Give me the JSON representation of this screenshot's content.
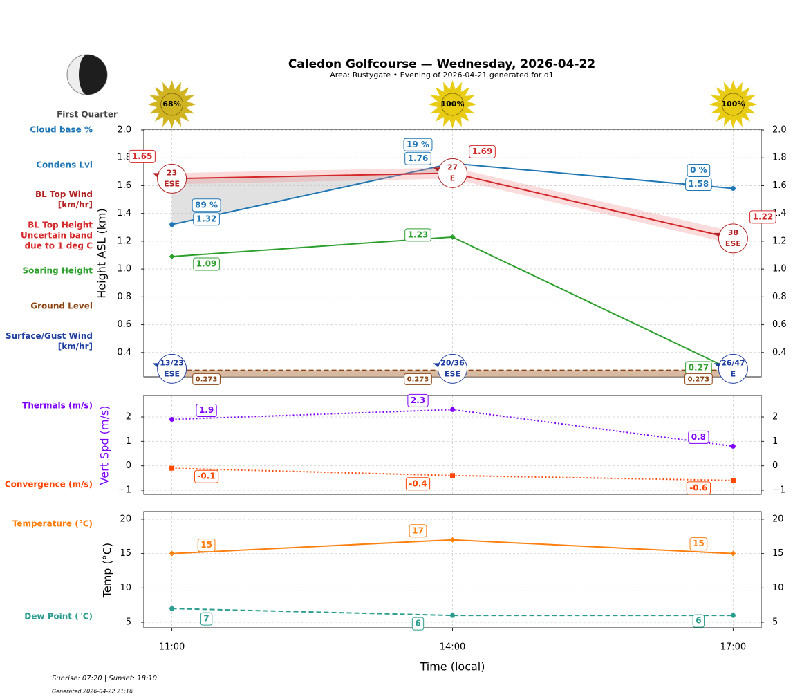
{
  "title": "Caledon Golfcourse — Wednesday, 2026-04-22",
  "subtitle": "Area: Rustygate • Evening of 2026-04-21 generated for d1",
  "moon_phase": "First Quarter",
  "sun": {
    "values": [
      68,
      100,
      100
    ],
    "value_labels": [
      "68%",
      "100%",
      "100%"
    ]
  },
  "footer": {
    "sun_times": "Sunrise: 07:20 | Sunset: 18:10",
    "generated": "Generated 2026-04-22 21:16"
  },
  "chart_data": [
    {
      "type": "line",
      "ylabel": "Height ASL (km)",
      "x": [
        11,
        14,
        17
      ],
      "xlim": [
        10.7,
        17.3
      ],
      "ylim": [
        0.225,
        2.0
      ],
      "yticks": [
        0.4,
        0.6,
        0.8,
        {
          "value": 1,
          "label": "1.0"
        },
        1.2,
        1.4,
        1.6,
        1.8,
        {
          "value": 2,
          "label": "2.0"
        }
      ],
      "grid": true,
      "series": [
        {
          "name": "Cloud base %",
          "color": "#1f77b4",
          "style": "labels",
          "values": [
            89,
            19,
            0
          ],
          "value_labels": [
            "89 %",
            "19 %",
            "0 %"
          ]
        },
        {
          "name": "Condens Lvl",
          "color": "#1f77b4",
          "style": "line",
          "dash": "solid",
          "marker": "circle",
          "values": [
            1.32,
            1.76,
            1.58
          ]
        },
        {
          "name": "BL Top Wind\n[km/hr]",
          "color": "#b22222",
          "style": "wind",
          "values": [
            23,
            27,
            38
          ],
          "directions": [
            "ESE",
            "E",
            "ESE"
          ]
        },
        {
          "name": "BL Top Height\nUncertain band\ndue to 1 deg C",
          "color": "#d62728",
          "style": "line",
          "dash": "solid",
          "marker": "circle",
          "values": [
            1.65,
            1.69,
            1.22
          ],
          "band_lower": [
            1.61,
            1.65,
            1.18
          ],
          "band_upper": [
            1.69,
            1.73,
            1.27
          ]
        },
        {
          "name": "Soaring Height",
          "color": "#2ca02c",
          "style": "line",
          "dash": "solid",
          "marker": "diamond",
          "values": [
            1.09,
            1.23,
            0.27
          ]
        },
        {
          "name": "Ground Level",
          "color": "#8b4513",
          "style": "area",
          "values": [
            0.273,
            0.273,
            0.273
          ]
        },
        {
          "name": "Surface/Gust Wind\n[km/hr]",
          "color": "#1f3fa0",
          "style": "wind",
          "values": [
            13,
            20,
            26
          ],
          "gust": [
            23,
            36,
            47
          ],
          "value_labels": [
            "13/23",
            "20/36",
            "26/47"
          ],
          "directions": [
            "ESE",
            "ESE",
            "E"
          ]
        }
      ]
    },
    {
      "type": "line",
      "ylabel": "Vert Spd (m/s)",
      "x": [
        11,
        14,
        17
      ],
      "xlim": [
        10.7,
        17.3
      ],
      "ylim": [
        -1.17,
        2.85
      ],
      "yticks": [
        {
          "value": -1,
          "label": "−1"
        },
        0,
        1,
        2
      ],
      "grid": true,
      "series": [
        {
          "name": "Thermals (m/s)",
          "color": "#7f00ff",
          "style": "line",
          "dash": "dotted",
          "marker": "circle",
          "values": [
            1.9,
            2.3,
            0.8
          ]
        },
        {
          "name": "Convergence (m/s)",
          "color": "#ff4500",
          "style": "line",
          "dash": "dotted",
          "marker": "square",
          "values": [
            -0.1,
            -0.4,
            -0.6
          ]
        }
      ]
    },
    {
      "type": "line",
      "ylabel": "Temp (°C)",
      "xlabel": "Time (local)",
      "x": [
        11,
        14,
        17
      ],
      "xlim": [
        10.7,
        17.3
      ],
      "xticks": [
        {
          "value": 11,
          "label": "11:00"
        },
        {
          "value": 14,
          "label": "14:00"
        },
        {
          "value": 17,
          "label": "17:00"
        }
      ],
      "ylim": [
        4.2,
        21
      ],
      "yticks": [
        5,
        10,
        15,
        20
      ],
      "grid": true,
      "series": [
        {
          "name": "Temperature (°C)",
          "color": "#ff7f0e",
          "style": "line",
          "dash": "solid",
          "marker": "diamond",
          "values": [
            15,
            17,
            15
          ]
        },
        {
          "name": "Dew Point (°C)",
          "color": "#2a9d8f",
          "style": "line",
          "dash": "dashed",
          "marker": "circle",
          "values": [
            7,
            6,
            6
          ]
        }
      ]
    }
  ]
}
